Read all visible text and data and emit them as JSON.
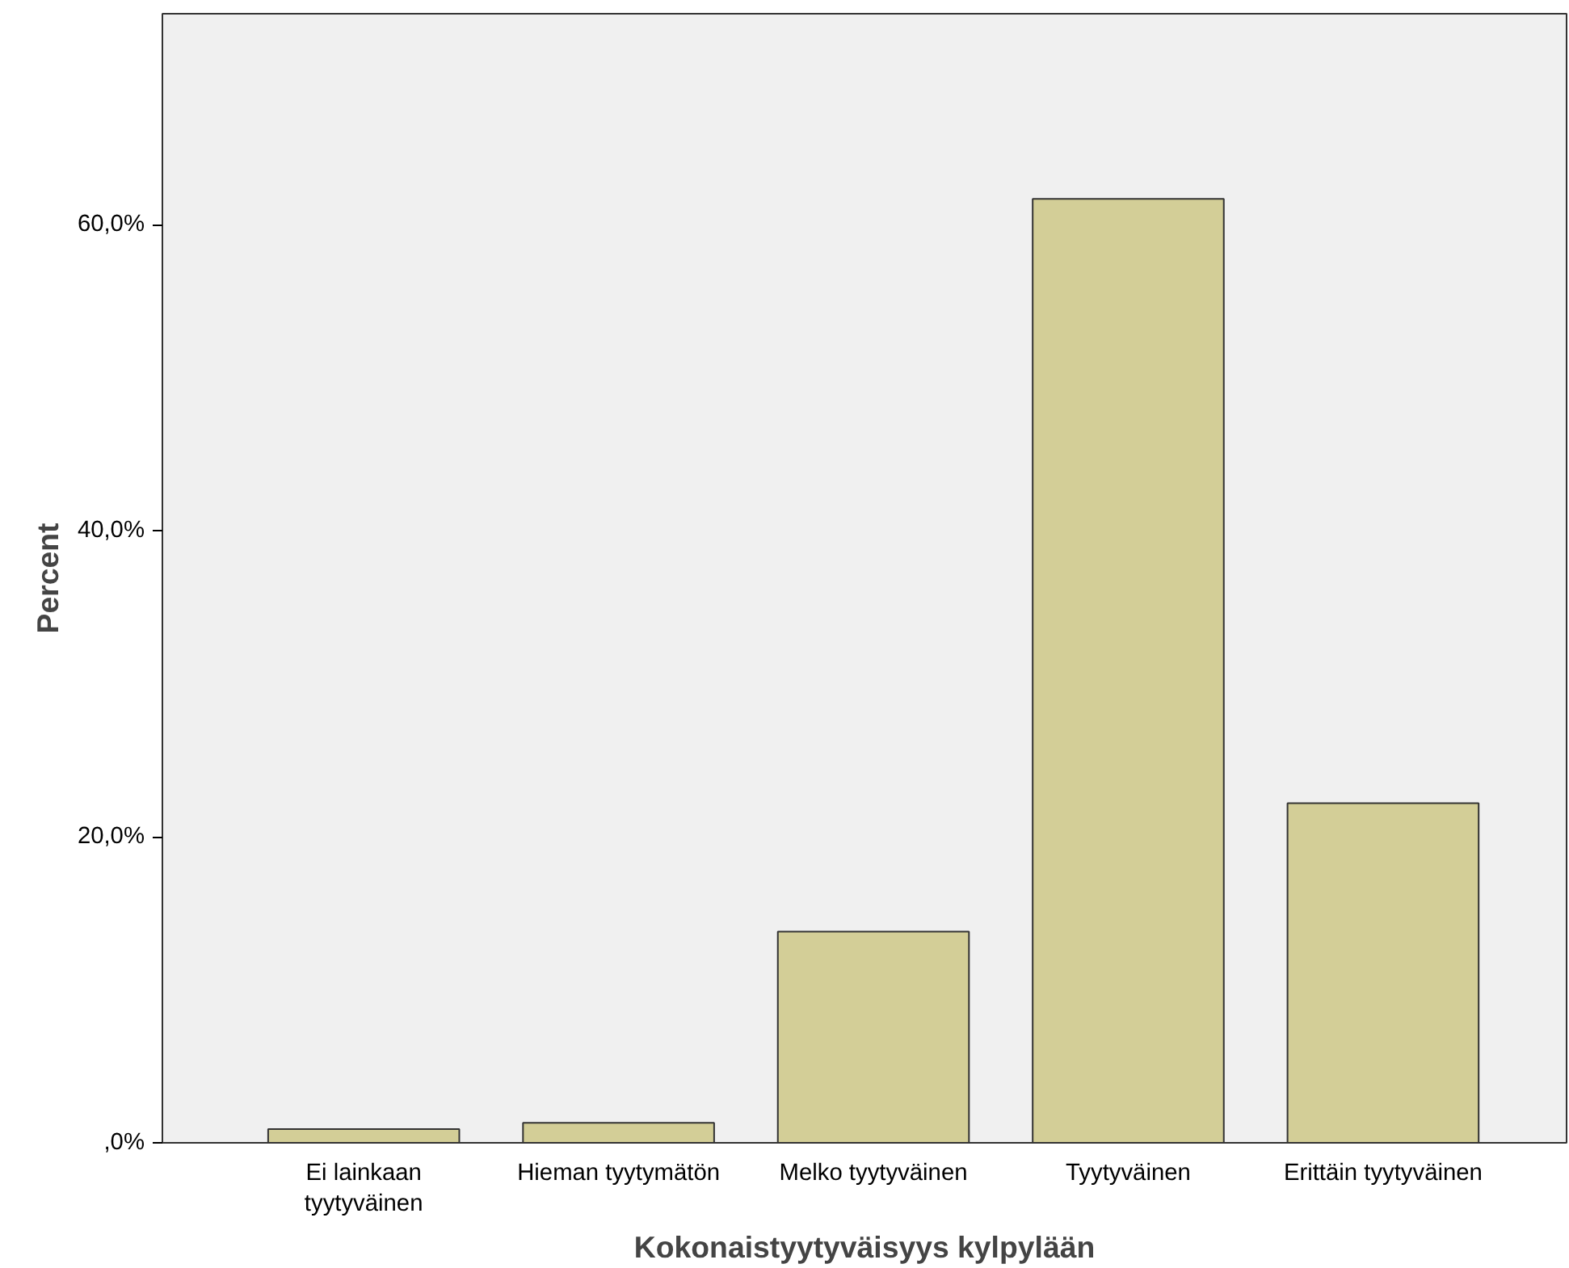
{
  "chart_data": {
    "type": "bar",
    "xlabel": "Kokonaistyytyväisyys kylpylään",
    "ylabel": "Percent",
    "categories": [
      "Ei lainkaan\ntyytyväinen",
      "Hieman tyytymätön",
      "Melko tyytyväinen",
      "Tyytyväinen",
      "Erittäin tyytyväinen"
    ],
    "values": [
      0.9,
      1.3,
      13.8,
      61.7,
      22.2
    ],
    "color": "#d3ce97",
    "ylim": [
      0,
      73.8
    ],
    "yticks": [
      {
        "value": 0,
        "label": ",0%"
      },
      {
        "value": 20,
        "label": "20,0%"
      },
      {
        "value": 40,
        "label": "40,0%"
      },
      {
        "value": 60,
        "label": "60,0%"
      }
    ],
    "grid": false
  }
}
